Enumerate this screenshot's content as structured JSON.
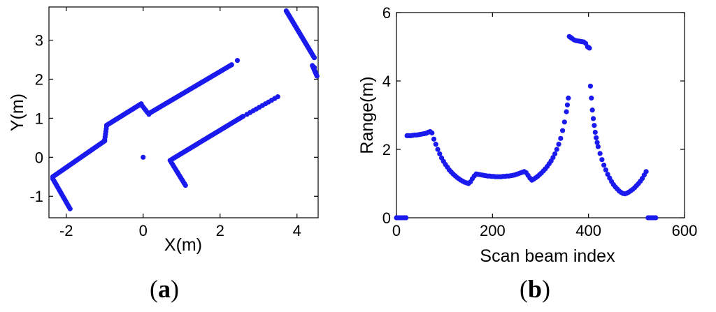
{
  "chart_data": [
    {
      "type": "scatter",
      "panel_label": "(a)",
      "panel_letter": "a",
      "xlabel": "X(m)",
      "ylabel": "Y(m)",
      "xlim": [
        -2.45,
        4.55
      ],
      "ylim": [
        -1.55,
        3.85
      ],
      "xticks": [
        -2,
        0,
        2,
        4
      ],
      "yticks": [
        -1,
        0,
        1,
        2,
        3
      ],
      "grid": false,
      "color": "#1a1aee",
      "segments": [
        {
          "from": [
            -1.9,
            -1.32
          ],
          "to": [
            -2.35,
            -0.55
          ],
          "n": 18
        },
        {
          "from": [
            -2.35,
            -0.5
          ],
          "to": [
            -1.0,
            0.42
          ],
          "n": 40
        },
        {
          "from": [
            -1.0,
            0.45
          ],
          "to": [
            -0.95,
            0.8
          ],
          "n": 6
        },
        {
          "from": [
            -0.95,
            0.82
          ],
          "to": [
            -0.05,
            1.37
          ],
          "n": 28
        },
        {
          "from": [
            -0.05,
            1.35
          ],
          "to": [
            0.15,
            1.1
          ],
          "n": 6
        },
        {
          "from": [
            0.15,
            1.12
          ],
          "to": [
            2.3,
            2.37
          ],
          "n": 60
        },
        {
          "from": [
            1.1,
            -0.72
          ],
          "to": [
            0.7,
            -0.08
          ],
          "n": 14
        },
        {
          "from": [
            0.75,
            -0.05
          ],
          "to": [
            2.6,
            1.05
          ],
          "n": 50
        },
        {
          "from": [
            2.7,
            1.1
          ],
          "to": [
            3.5,
            1.55
          ],
          "n": 11
        },
        {
          "from": [
            3.72,
            3.75
          ],
          "to": [
            4.45,
            2.55
          ],
          "n": 38
        },
        {
          "from": [
            4.4,
            2.35
          ],
          "to": [
            4.52,
            2.08
          ],
          "n": 8
        }
      ],
      "points": [
        [
          2.45,
          2.48
        ],
        [
          0.0,
          0.0
        ],
        [
          4.45,
          2.3
        ]
      ]
    },
    {
      "type": "scatter",
      "panel_label": "(b)",
      "panel_letter": "b",
      "xlabel": "Scan beam index",
      "ylabel": "Range(m)",
      "xlim": [
        0,
        600
      ],
      "ylim": [
        0,
        6
      ],
      "xticks": [
        0,
        200,
        400,
        600
      ],
      "yticks": [
        0,
        2,
        4,
        6
      ],
      "grid": false,
      "color": "#1a1aee",
      "x": [
        0,
        4,
        8,
        12,
        16,
        20,
        22,
        26,
        30,
        34,
        38,
        42,
        46,
        50,
        54,
        58,
        62,
        66,
        70,
        74,
        78,
        82,
        86,
        90,
        94,
        98,
        102,
        106,
        110,
        114,
        118,
        122,
        126,
        130,
        134,
        138,
        142,
        146,
        150,
        154,
        158,
        162,
        166,
        170,
        174,
        178,
        182,
        186,
        190,
        194,
        198,
        202,
        206,
        210,
        214,
        218,
        222,
        226,
        230,
        234,
        238,
        242,
        246,
        250,
        254,
        258,
        262,
        266,
        270,
        274,
        278,
        282,
        286,
        290,
        294,
        298,
        302,
        306,
        310,
        314,
        318,
        322,
        326,
        330,
        334,
        338,
        342,
        346,
        350,
        354,
        356,
        358,
        360,
        362,
        364,
        366,
        370,
        374,
        378,
        382,
        386,
        390,
        394,
        398,
        400,
        402,
        404,
        406,
        408,
        410,
        412,
        414,
        416,
        418,
        420,
        424,
        428,
        432,
        436,
        440,
        444,
        448,
        452,
        456,
        460,
        464,
        468,
        472,
        476,
        480,
        484,
        488,
        492,
        496,
        500,
        504,
        508,
        512,
        516,
        520,
        524,
        528,
        532,
        536,
        540
      ],
      "y": [
        0,
        0,
        0,
        0,
        0,
        0,
        2.4,
        2.4,
        2.4,
        2.41,
        2.42,
        2.42,
        2.43,
        2.44,
        2.45,
        2.46,
        2.47,
        2.5,
        2.52,
        2.48,
        2.3,
        2.15,
        2.0,
        1.87,
        1.75,
        1.65,
        1.56,
        1.48,
        1.4,
        1.34,
        1.28,
        1.23,
        1.18,
        1.14,
        1.1,
        1.07,
        1.04,
        1.02,
        1.0,
        1.05,
        1.14,
        1.22,
        1.28,
        1.27,
        1.26,
        1.25,
        1.24,
        1.23,
        1.22,
        1.22,
        1.21,
        1.21,
        1.2,
        1.2,
        1.2,
        1.2,
        1.21,
        1.21,
        1.22,
        1.22,
        1.23,
        1.24,
        1.25,
        1.27,
        1.29,
        1.31,
        1.33,
        1.35,
        1.32,
        1.24,
        1.16,
        1.1,
        1.13,
        1.17,
        1.21,
        1.26,
        1.31,
        1.37,
        1.43,
        1.5,
        1.58,
        1.66,
        1.76,
        1.87,
        2.0,
        2.15,
        2.32,
        2.55,
        2.8,
        3.1,
        3.3,
        3.5,
        5.3,
        5.28,
        5.26,
        5.24,
        5.2,
        5.18,
        5.17,
        5.16,
        5.15,
        5.14,
        5.1,
        5.0,
        4.98,
        4.96,
        3.85,
        3.5,
        3.15,
        2.9,
        2.7,
        2.5,
        2.34,
        2.2,
        2.08,
        1.88,
        1.7,
        1.54,
        1.4,
        1.27,
        1.16,
        1.06,
        0.97,
        0.9,
        0.84,
        0.78,
        0.74,
        0.71,
        0.7,
        0.72,
        0.75,
        0.79,
        0.83,
        0.88,
        0.94,
        1.0,
        1.07,
        1.15,
        1.25,
        1.35,
        0,
        0,
        0,
        0,
        0
      ]
    }
  ]
}
